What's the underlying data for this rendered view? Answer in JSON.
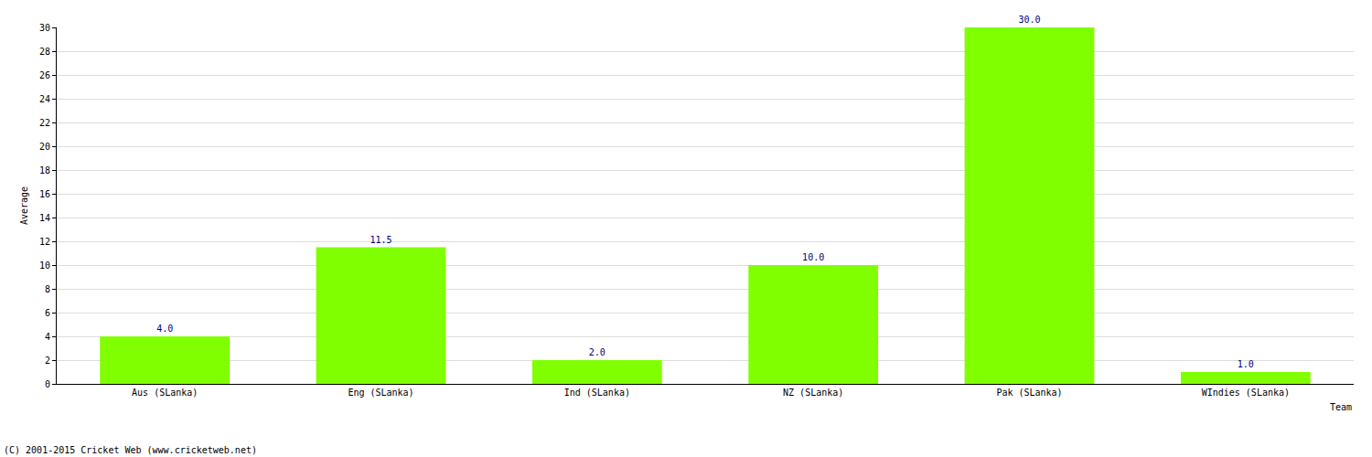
{
  "chart_data": {
    "type": "bar",
    "ylabel": "Average",
    "xlabel": "Team",
    "annotations": [
      "(C) 2001-2015 Cricket Web (www.cricketweb.net)"
    ],
    "categories": [
      "Aus (SLanka)",
      "Eng (SLanka)",
      "Ind (SLanka)",
      "NZ (SLanka)",
      "Pak (SLanka)",
      "WIndies (SLanka)"
    ],
    "values": [
      4,
      11.5,
      2,
      10,
      30,
      1
    ],
    "value_labels": [
      "4.0",
      "11.5",
      "2.0",
      "10.0",
      "30.0",
      "1.0"
    ],
    "color": "#80ff00",
    "ylim": [
      0,
      30
    ],
    "yticks": [
      0,
      2,
      4,
      6,
      8,
      10,
      12,
      14,
      16,
      18,
      20,
      22,
      24,
      26,
      28,
      30
    ],
    "grid": true,
    "data_labels": true
  }
}
